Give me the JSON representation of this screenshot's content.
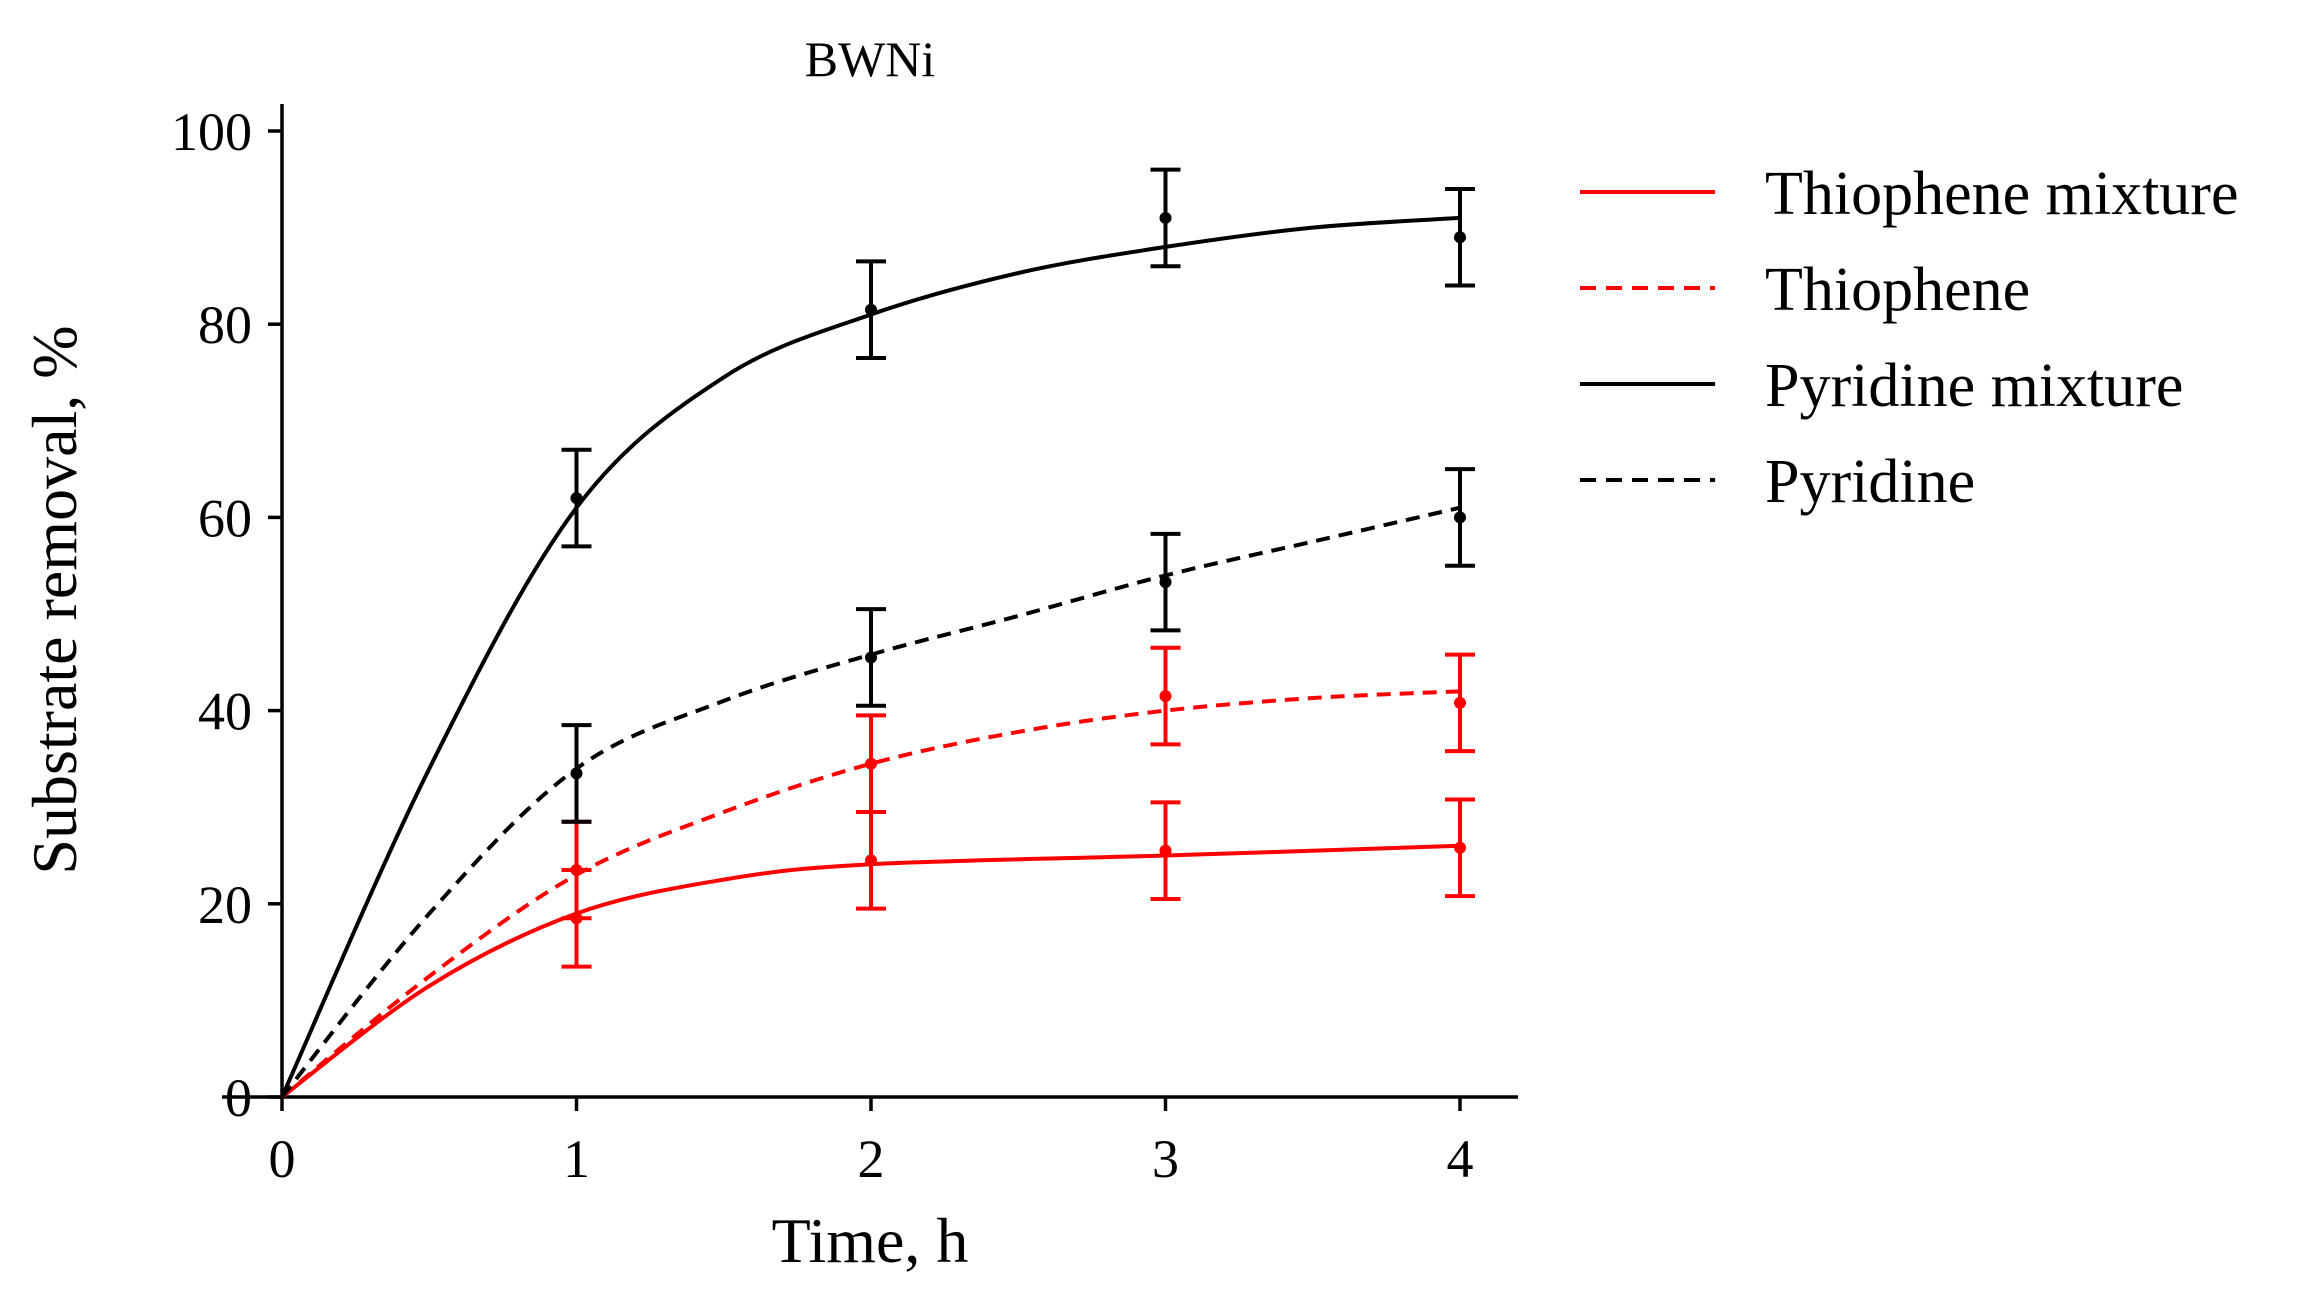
{
  "chart_data": {
    "type": "line",
    "title": "BWNi",
    "xlabel": "Time, h",
    "ylabel": "Substrate removal, %",
    "xlim": [
      0,
      4
    ],
    "ylim": [
      0,
      100
    ],
    "xticks": [
      "0",
      "1",
      "2",
      "3",
      "4"
    ],
    "yticks": [
      "0",
      "20",
      "40",
      "60",
      "80",
      "100"
    ],
    "grid": false,
    "legend_position": "right",
    "series": [
      {
        "name": "Thiophene mixture",
        "color": "#ff0000",
        "dash": "solid",
        "points": [
          {
            "x": 1,
            "y": 18.5,
            "err": 5
          },
          {
            "x": 2,
            "y": 24.5,
            "err": 5
          },
          {
            "x": 3,
            "y": 25.5,
            "err": 5
          },
          {
            "x": 4,
            "y": 25.8,
            "err": 5
          }
        ],
        "fit": [
          [
            0,
            0
          ],
          [
            0.5,
            11.5
          ],
          [
            1,
            19
          ],
          [
            1.5,
            22.5
          ],
          [
            2,
            24.1
          ],
          [
            3,
            25
          ],
          [
            4,
            26
          ]
        ]
      },
      {
        "name": "Thiophene",
        "color": "#ff0000",
        "dash": "dashed",
        "points": [
          {
            "x": 1,
            "y": 23.5,
            "err": 5
          },
          {
            "x": 2,
            "y": 34.5,
            "err": 5
          },
          {
            "x": 3,
            "y": 41.5,
            "err": 5
          },
          {
            "x": 4,
            "y": 40.8,
            "err": 5
          }
        ],
        "fit": [
          [
            0,
            0
          ],
          [
            0.5,
            12.5
          ],
          [
            1,
            23
          ],
          [
            1.5,
            29.5
          ],
          [
            2,
            34.5
          ],
          [
            2.5,
            37.8
          ],
          [
            3,
            40
          ],
          [
            3.5,
            41.3
          ],
          [
            4,
            42
          ]
        ]
      },
      {
        "name": "Pyridine mixture",
        "color": "#000000",
        "dash": "solid",
        "points": [
          {
            "x": 1,
            "y": 62,
            "err": 5
          },
          {
            "x": 2,
            "y": 81.5,
            "err": 5
          },
          {
            "x": 3,
            "y": 91,
            "err": 5
          },
          {
            "x": 4,
            "y": 89,
            "err": 5
          }
        ],
        "fit": [
          [
            0,
            0
          ],
          [
            0.5,
            34
          ],
          [
            1,
            61
          ],
          [
            1.5,
            74.5
          ],
          [
            2,
            81
          ],
          [
            2.5,
            85.3
          ],
          [
            3,
            88
          ],
          [
            3.5,
            90
          ],
          [
            4,
            91
          ]
        ]
      },
      {
        "name": "Pyridine",
        "color": "#000000",
        "dash": "dashed",
        "points": [
          {
            "x": 1,
            "y": 33.5,
            "err": 5
          },
          {
            "x": 2,
            "y": 45.5,
            "err": 5
          },
          {
            "x": 3,
            "y": 53.3,
            "err": 5
          },
          {
            "x": 4,
            "y": 60,
            "err": 5
          }
        ],
        "fit": [
          [
            0,
            0
          ],
          [
            0.5,
            19
          ],
          [
            1,
            34
          ],
          [
            1.5,
            41
          ],
          [
            2,
            45.8
          ],
          [
            2.5,
            49.8
          ],
          [
            3,
            54
          ],
          [
            3.5,
            57.5
          ],
          [
            4,
            61
          ]
        ]
      }
    ]
  }
}
